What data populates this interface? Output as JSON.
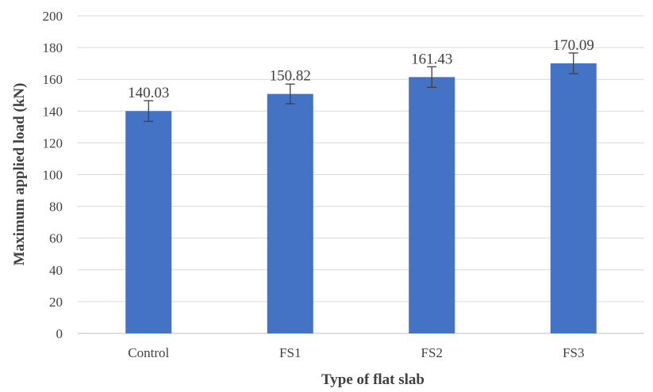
{
  "chart_data": {
    "type": "bar",
    "categories": [
      "Control",
      "FS1",
      "FS2",
      "FS3"
    ],
    "values": [
      140.03,
      150.82,
      161.43,
      170.09
    ],
    "data_labels": [
      "140.03",
      "150.82",
      "161.43",
      "170.09"
    ],
    "error": [
      6.5,
      6.2,
      6.5,
      6.5
    ],
    "xlabel": "Type of flat slab",
    "ylabel": "Maximum applied load (kN)",
    "ylim": [
      0,
      200
    ],
    "yticks": [
      0,
      20,
      40,
      60,
      80,
      100,
      120,
      140,
      160,
      180,
      200
    ],
    "ytick_labels": [
      "0",
      "20",
      "40",
      "60",
      "80",
      "100",
      "120",
      "140",
      "160",
      "180",
      "200"
    ],
    "grid": true,
    "legend": "none",
    "bar_color": "#4472c4"
  }
}
